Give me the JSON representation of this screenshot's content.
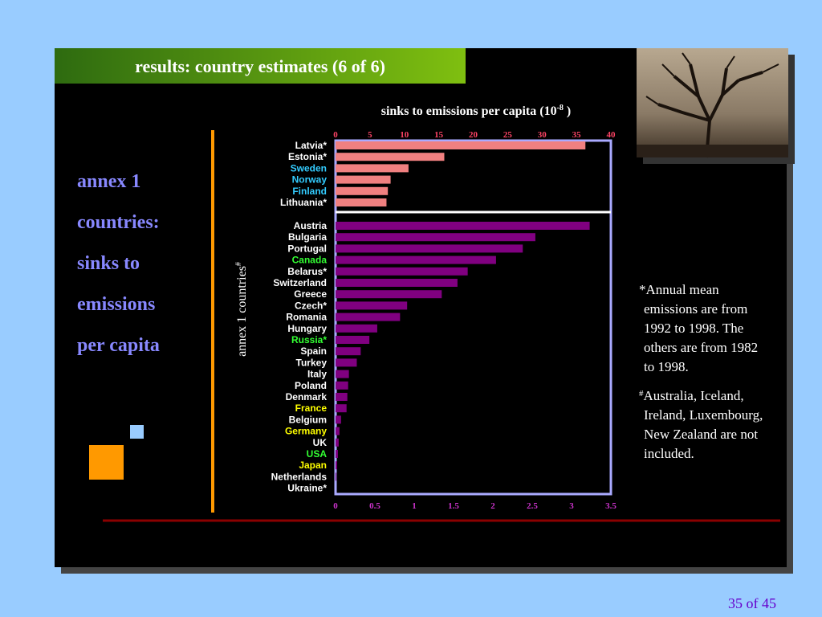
{
  "slide": {
    "title": "results: country estimates (6 of 6)",
    "heading": [
      "annex 1",
      "countries:",
      "sinks to",
      "emissions",
      "per capita"
    ],
    "notes": [
      {
        "mark": "*",
        "lines": [
          "Annual mean",
          "emissions are from",
          "1992 to 1998. The",
          "others are from 1982",
          "to 1998."
        ]
      },
      {
        "mark": "#",
        "lines": [
          "Australia, Iceland,",
          "Ireland, Luxembourg,",
          "New Zealand are not",
          "included."
        ]
      }
    ],
    "page": "35 of 45"
  },
  "chart_data": [
    {
      "type": "bar",
      "orientation": "horizontal",
      "title": "sinks to emissions per capita (10",
      "title_superscript": "-8",
      "title_end": " )",
      "ylabel": "annex 1 countries",
      "ylabel_superscript": "#",
      "categories": [
        "Latvia*",
        "Estonia*",
        "Sweden",
        "Norway",
        "Finland",
        "Lithuania*"
      ],
      "category_colors": [
        "#ffffff",
        "#ffffff",
        "#33ccff",
        "#33ccff",
        "#33ccff",
        "#ffffff"
      ],
      "values": [
        36.3,
        15.8,
        10.6,
        8.0,
        7.6,
        7.4
      ],
      "color": "#f08080",
      "xlim": [
        0,
        40
      ],
      "xticks": [
        0,
        5,
        10,
        15,
        20,
        25,
        30,
        35,
        40
      ],
      "tick_color": "#ff4466",
      "axis_position": "top"
    },
    {
      "type": "bar",
      "orientation": "horizontal",
      "categories": [
        "Austria",
        "Bulgaria",
        "Portugal",
        "Canada",
        "Belarus*",
        "Switzerland",
        "Greece",
        "Czech*",
        "Romania",
        "Hungary",
        "Russia*",
        "Spain",
        "Turkey",
        "Italy",
        "Poland",
        "Denmark",
        "France",
        "Belgium",
        "Germany",
        "UK",
        "USA",
        "Japan",
        "Netherlands",
        "Ukraine*"
      ],
      "category_colors": [
        "#ffffff",
        "#ffffff",
        "#ffffff",
        "#33ff33",
        "#ffffff",
        "#ffffff",
        "#ffffff",
        "#ffffff",
        "#ffffff",
        "#ffffff",
        "#33ff33",
        "#ffffff",
        "#ffffff",
        "#ffffff",
        "#ffffff",
        "#ffffff",
        "#ffff00",
        "#ffffff",
        "#ffff00",
        "#ffffff",
        "#33ff33",
        "#ffff00",
        "#ffffff",
        "#ffffff"
      ],
      "values": [
        3.23,
        2.54,
        2.38,
        2.04,
        1.68,
        1.55,
        1.35,
        0.91,
        0.82,
        0.53,
        0.43,
        0.32,
        0.27,
        0.17,
        0.16,
        0.15,
        0.14,
        0.07,
        0.05,
        0.04,
        0.03,
        0.02,
        0.01,
        0
      ],
      "color": "#800080",
      "xlim": [
        0,
        3.5
      ],
      "xticks": [
        0,
        0.5,
        1,
        1.5,
        2,
        2.5,
        3,
        3.5
      ],
      "tick_color": "#cc33cc",
      "axis_position": "bottom"
    }
  ]
}
